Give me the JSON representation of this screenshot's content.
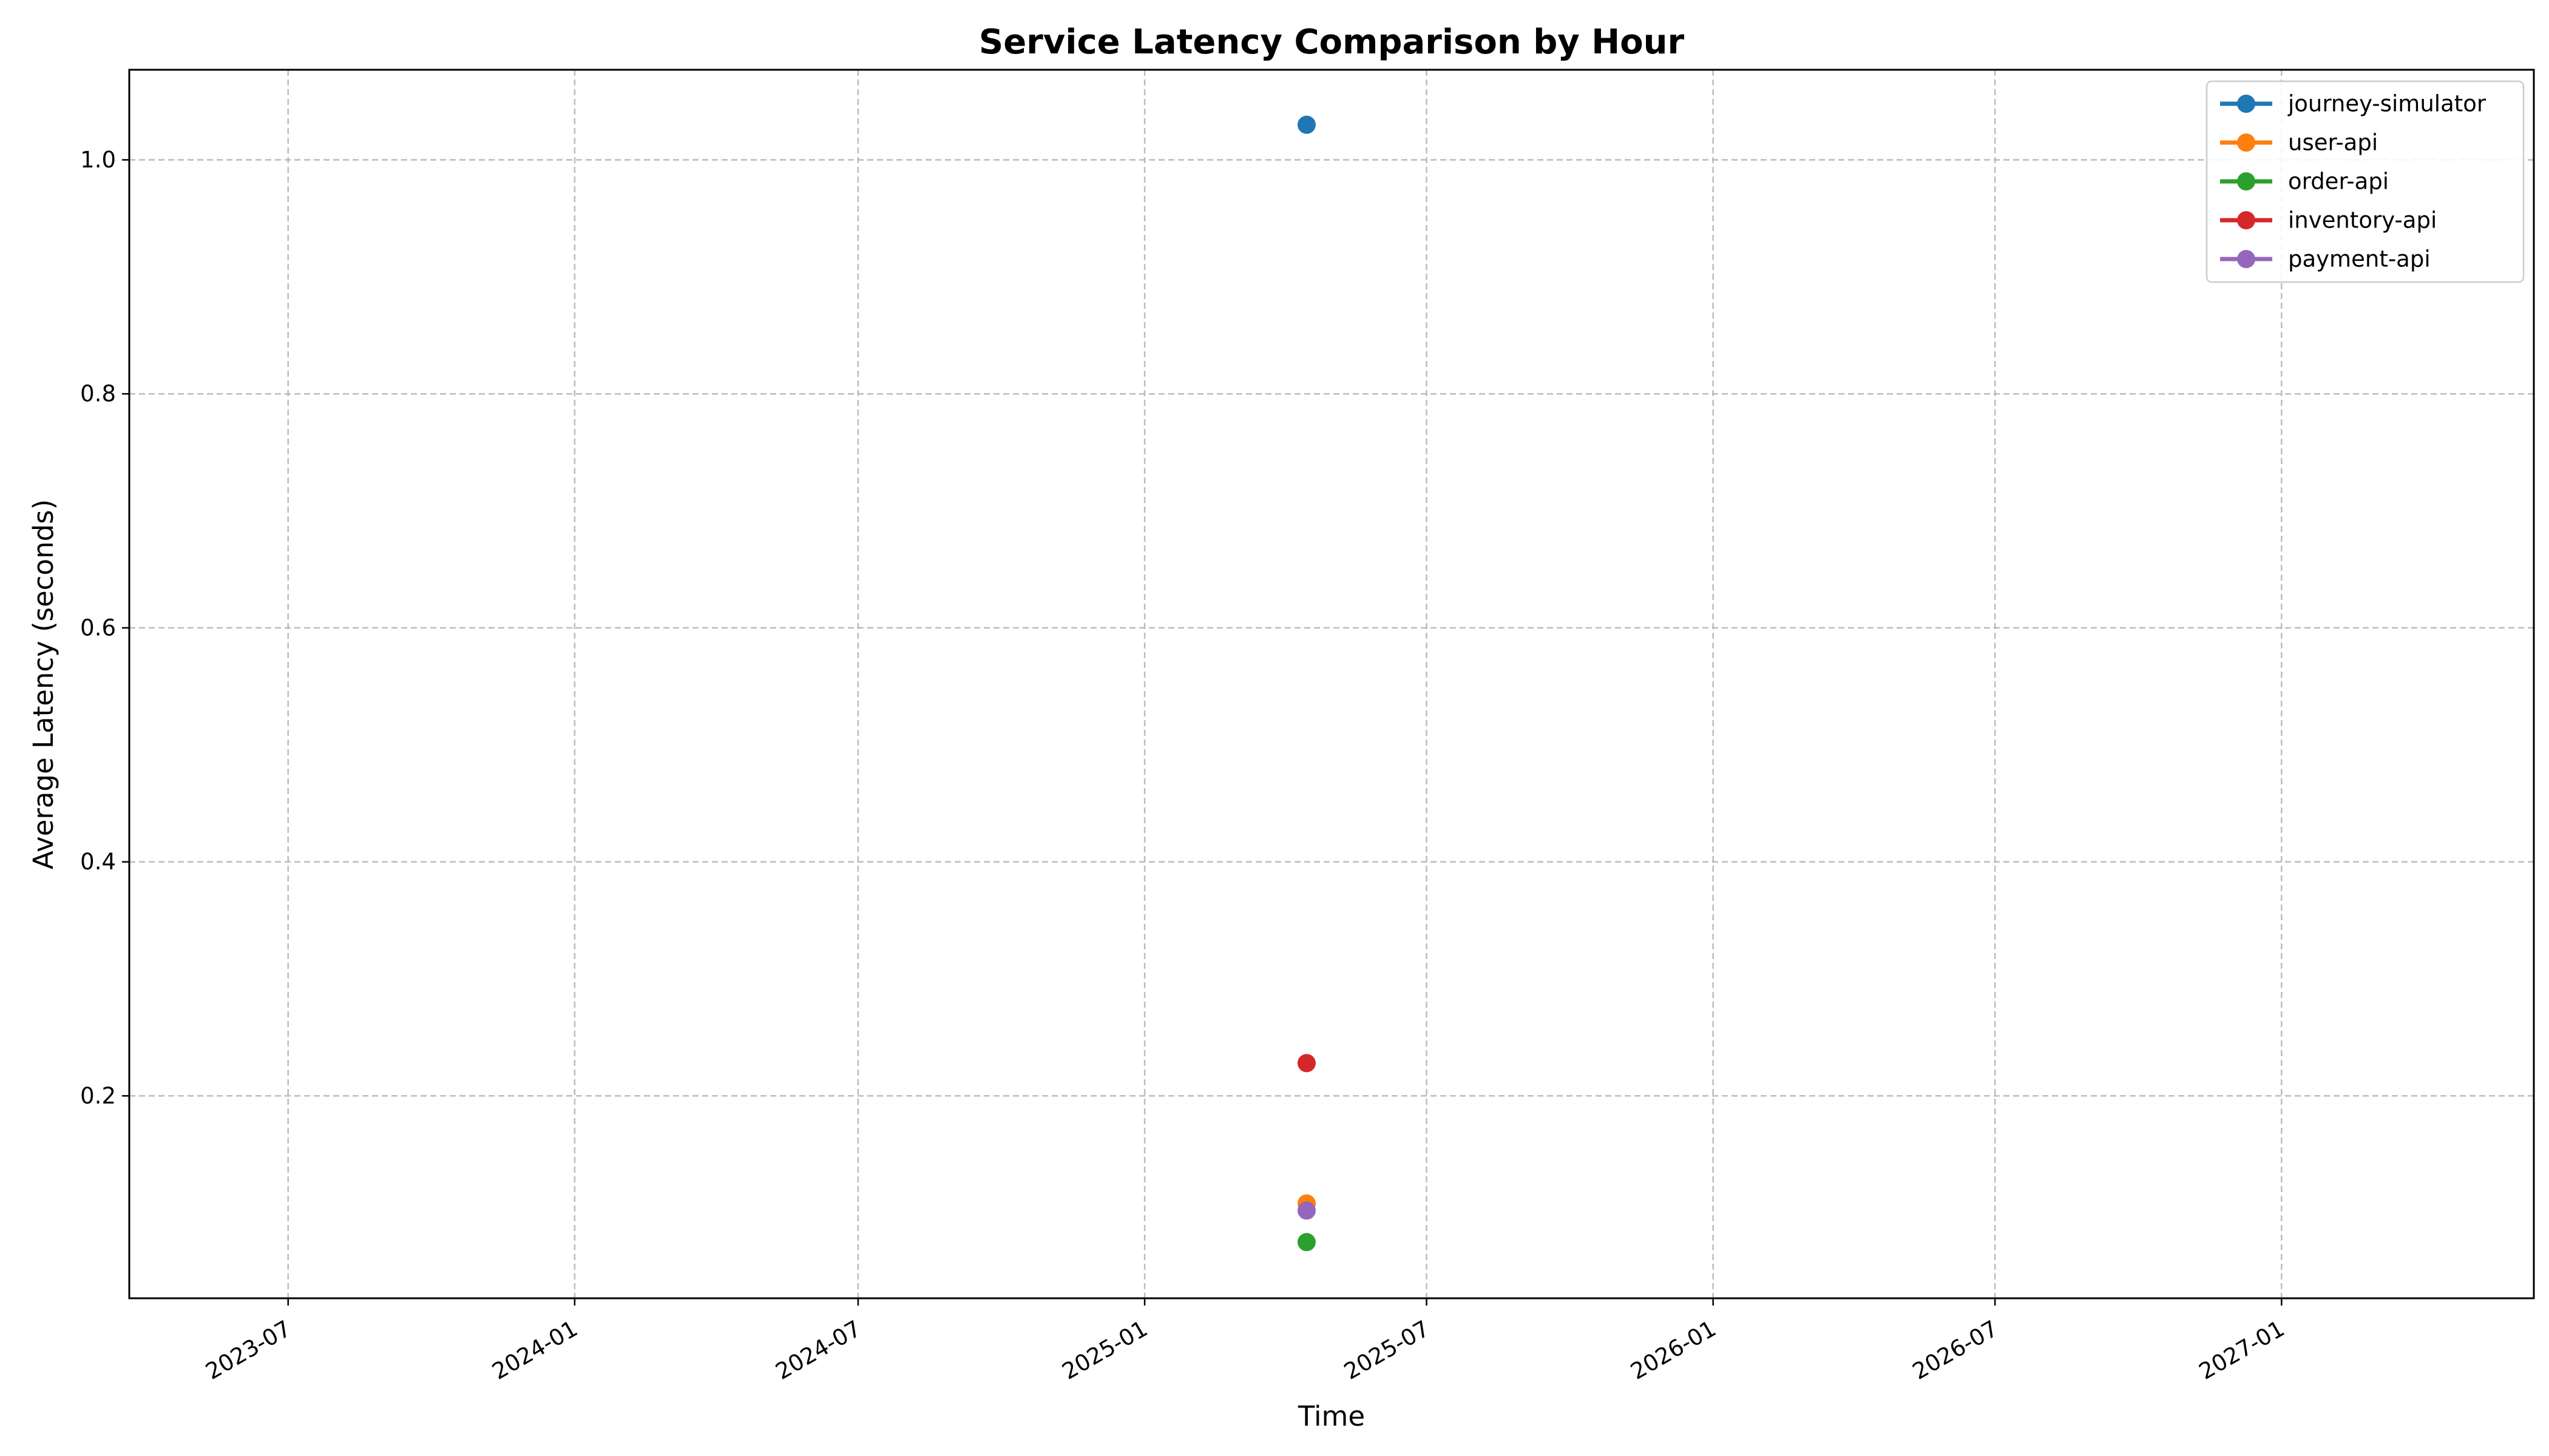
{
  "chart_data": {
    "type": "line",
    "title": "Service Latency Comparison by Hour",
    "xlabel": "Time",
    "ylabel": "Average Latency (seconds)",
    "x_axis_type": "date",
    "xlim": [
      "2023-03-21",
      "2027-06-12"
    ],
    "ylim": [
      0.027,
      1.077
    ],
    "x_ticks": [
      "2023-07",
      "2024-01",
      "2024-07",
      "2025-01",
      "2025-07",
      "2026-01",
      "2026-07",
      "2027-01"
    ],
    "y_ticks": [
      0.2,
      0.4,
      0.6,
      0.8,
      1.0
    ],
    "y_tick_labels": [
      "0.2",
      "0.4",
      "0.6",
      "0.8",
      "1.0"
    ],
    "grid": true,
    "legend_position": "top-right",
    "series": [
      {
        "name": "journey-simulator",
        "color": "#1f77b4",
        "x": [
          "2025-04-15"
        ],
        "y": [
          1.03
        ]
      },
      {
        "name": "user-api",
        "color": "#ff7f0e",
        "x": [
          "2025-04-15"
        ],
        "y": [
          0.108
        ]
      },
      {
        "name": "order-api",
        "color": "#2ca02c",
        "x": [
          "2025-04-15"
        ],
        "y": [
          0.075
        ]
      },
      {
        "name": "inventory-api",
        "color": "#d62728",
        "x": [
          "2025-04-15"
        ],
        "y": [
          0.228
        ]
      },
      {
        "name": "payment-api",
        "color": "#9467bd",
        "x": [
          "2025-04-15"
        ],
        "y": [
          0.102
        ]
      }
    ]
  }
}
